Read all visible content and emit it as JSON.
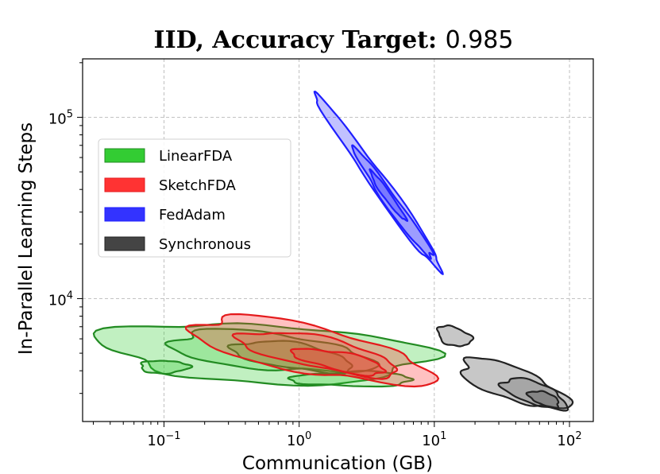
{
  "chart_data": {
    "type": "kde-contour",
    "title": {
      "main": "IID, Accuracy Target: ",
      "value": "0.985"
    },
    "xlabel": "Communication (GB)",
    "ylabel": "In-Parallel Learning Steps",
    "xscale": "log",
    "yscale": "log",
    "xlim": [
      0.025,
      150
    ],
    "ylim": [
      2100,
      210000
    ],
    "grid": true,
    "legend_position": "upper-left",
    "x_ticks": [
      {
        "value": 0.1,
        "base": "10",
        "exp": "−1"
      },
      {
        "value": 1,
        "base": "10",
        "exp": "0"
      },
      {
        "value": 10,
        "base": "10",
        "exp": "1"
      },
      {
        "value": 100,
        "base": "10",
        "exp": "2"
      }
    ],
    "y_ticks": [
      {
        "value": 10000,
        "base": "10",
        "exp": "4"
      },
      {
        "value": 100000,
        "base": "10",
        "exp": "5"
      }
    ],
    "series": [
      {
        "name": "LinearFDA",
        "color": "#228b22",
        "fill": "#33cc33",
        "regions": [
          {
            "cx": 0.55,
            "cy": 5000,
            "rx": 1.2,
            "ry": 0.16,
            "rot": -0.05,
            "level": 1
          },
          {
            "cx": 0.1,
            "cy": 4200,
            "rx": 0.18,
            "ry": 0.035,
            "rot": 0,
            "level": 1
          },
          {
            "cx": 0.6,
            "cy": 5100,
            "rx": 0.75,
            "ry": 0.1,
            "rot": -0.1,
            "level": 2
          },
          {
            "cx": 0.9,
            "cy": 4800,
            "rx": 0.45,
            "ry": 0.07,
            "rot": -0.15,
            "level": 3
          },
          {
            "cx": 2.5,
            "cy": 3600,
            "rx": 0.45,
            "ry": 0.04,
            "rot": 0,
            "level": 2
          }
        ]
      },
      {
        "name": "SketchFDA",
        "color": "#e41a1c",
        "fill": "#ff3333",
        "regions": [
          {
            "cx": 1.2,
            "cy": 5200,
            "rx": 0.9,
            "ry": 0.13,
            "rot": -0.2,
            "level": 1
          },
          {
            "cx": 1.4,
            "cy": 5000,
            "rx": 0.6,
            "ry": 0.085,
            "rot": -0.2,
            "level": 2
          },
          {
            "cx": 2.0,
            "cy": 4500,
            "rx": 0.35,
            "ry": 0.05,
            "rot": -0.2,
            "level": 3
          }
        ]
      },
      {
        "name": "FedAdam",
        "color": "#1f1fff",
        "fill": "#3333ff",
        "regions": [
          {
            "cx": 4.0,
            "cy": 42000,
            "rx": 0.8,
            "ry": 0.045,
            "rot": -0.95,
            "level": 1
          },
          {
            "cx": 5.0,
            "cy": 33000,
            "rx": 0.5,
            "ry": 0.035,
            "rot": -0.95,
            "level": 2
          },
          {
            "cx": 4.5,
            "cy": 37000,
            "rx": 0.22,
            "ry": 0.02,
            "rot": -0.95,
            "level": 3
          }
        ]
      },
      {
        "name": "Synchronous",
        "color": "#222222",
        "fill": "#444444",
        "regions": [
          {
            "cx": 14,
            "cy": 6200,
            "rx": 0.13,
            "ry": 0.05,
            "rot": -0.3,
            "level": 1
          },
          {
            "cx": 38,
            "cy": 3400,
            "rx": 0.42,
            "ry": 0.09,
            "rot": -0.35,
            "level": 1
          },
          {
            "cx": 55,
            "cy": 3000,
            "rx": 0.25,
            "ry": 0.06,
            "rot": -0.35,
            "level": 2
          },
          {
            "cx": 65,
            "cy": 2800,
            "rx": 0.12,
            "ry": 0.035,
            "rot": -0.35,
            "level": 3
          }
        ]
      }
    ],
    "legend": [
      "LinearFDA",
      "SketchFDA",
      "FedAdam",
      "Synchronous"
    ]
  }
}
